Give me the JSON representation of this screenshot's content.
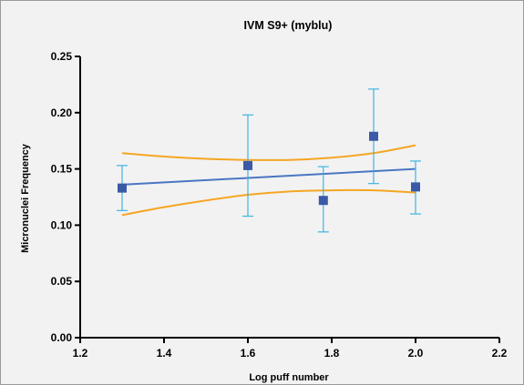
{
  "chart_data": {
    "type": "scatter",
    "title": "IVM S9+ (myblu)",
    "xlabel": "Log puff number",
    "ylabel": "Micronuclei Frequency",
    "xlim": [
      1.2,
      2.2
    ],
    "ylim": [
      0.0,
      0.25
    ],
    "x_ticks": [
      "1.2",
      "1.4",
      "1.6",
      "1.8",
      "2.0",
      "2.2"
    ],
    "y_ticks": [
      "0.00",
      "0.05",
      "0.10",
      "0.15",
      "0.20",
      "0.25"
    ],
    "grid": false,
    "points": [
      {
        "x": 1.3,
        "y": 0.133,
        "err_low": 0.113,
        "err_high": 0.153
      },
      {
        "x": 1.6,
        "y": 0.153,
        "err_low": 0.108,
        "err_high": 0.198
      },
      {
        "x": 1.78,
        "y": 0.122,
        "err_low": 0.094,
        "err_high": 0.152
      },
      {
        "x": 1.9,
        "y": 0.179,
        "err_low": 0.137,
        "err_high": 0.221
      },
      {
        "x": 2.0,
        "y": 0.134,
        "err_low": 0.11,
        "err_high": 0.157
      }
    ],
    "fit_line": {
      "x": [
        1.3,
        2.0
      ],
      "y": [
        0.136,
        0.15
      ]
    },
    "confidence_band": {
      "x": [
        1.3,
        1.4,
        1.5,
        1.6,
        1.7,
        1.8,
        1.9,
        2.0
      ],
      "upper": [
        0.164,
        0.161,
        0.159,
        0.158,
        0.158,
        0.16,
        0.164,
        0.171
      ],
      "lower": [
        0.109,
        0.116,
        0.122,
        0.127,
        0.13,
        0.131,
        0.131,
        0.129
      ]
    },
    "colors": {
      "marker": "#3a5aa8",
      "error_bar": "#41b4e0",
      "fit_line": "#4a76c2",
      "confidence_band": "#f5a623",
      "axis": "#000000"
    }
  }
}
